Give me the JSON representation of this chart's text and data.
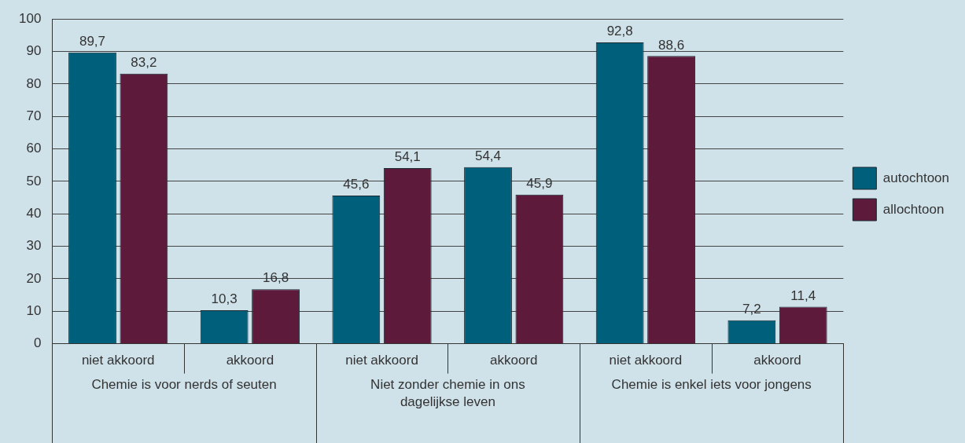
{
  "chart_data": {
    "type": "bar",
    "categories": [
      "niet akkoord",
      "akkoord",
      "niet akkoord",
      "akkoord",
      "niet akkoord",
      "akkoord"
    ],
    "annotations": [
      "Chemie is voor nerds of seuten",
      "Niet zonder chemie in ons dagelijkse leven",
      "Chemie is enkel iets voor jongens"
    ],
    "series": [
      {
        "name": "autochtoon",
        "color": "#005f7a",
        "values": [
          89.7,
          10.3,
          45.6,
          54.4,
          92.8,
          7.2
        ],
        "value_labels": [
          "89,7",
          "10,3",
          "45,6",
          "54,4",
          "92,8",
          "7,2"
        ]
      },
      {
        "name": "allochtoon",
        "color": "#5e1a3b",
        "values": [
          83.2,
          16.8,
          54.1,
          45.9,
          88.6,
          11.4
        ],
        "value_labels": [
          "83,2",
          "16,8",
          "54,1",
          "45,9",
          "88,6",
          "11,4"
        ]
      }
    ],
    "ylim": [
      0,
      100
    ],
    "yticks": [
      0,
      10,
      20,
      30,
      40,
      50,
      60,
      70,
      80,
      90,
      100
    ],
    "grid": "y",
    "legend": "right"
  }
}
